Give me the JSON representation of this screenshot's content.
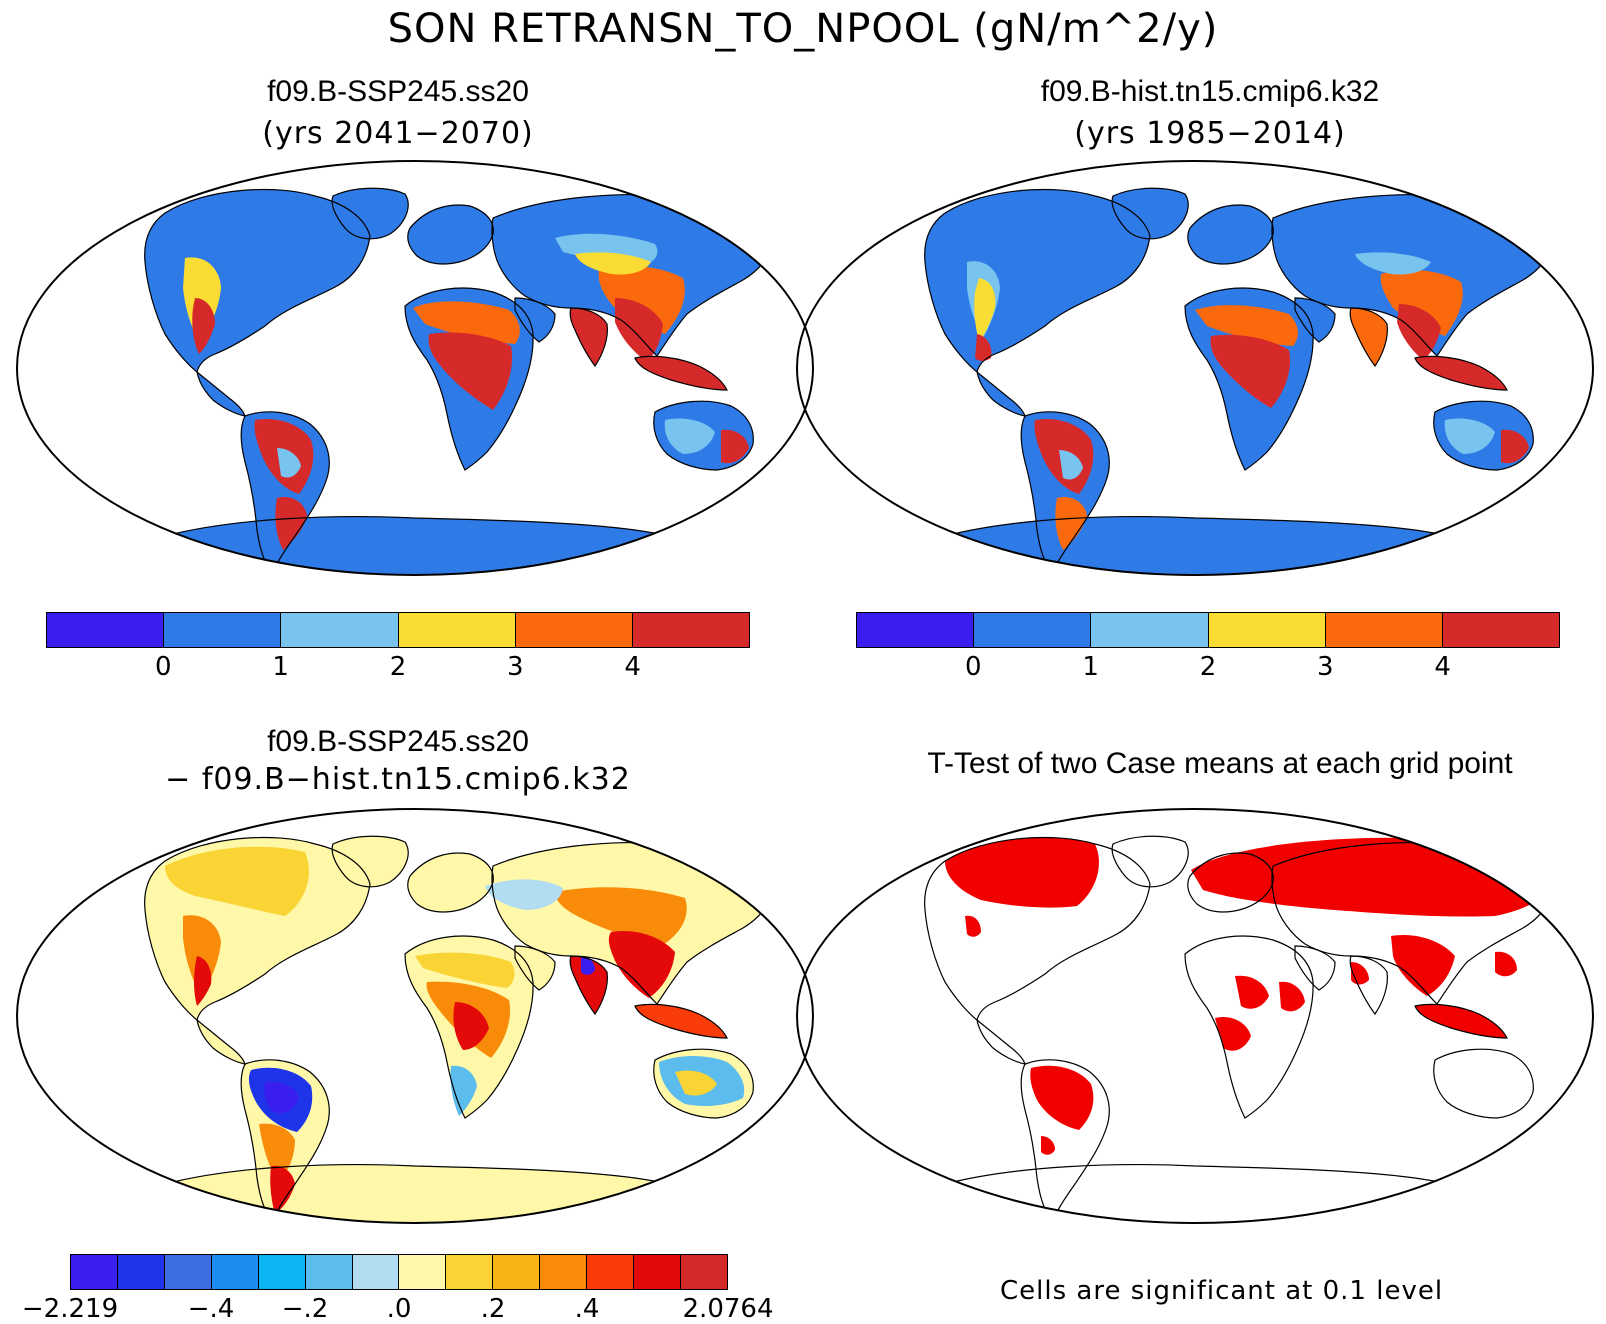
{
  "title": "SON RETRANSN_TO_NPOOL (gN/m^2/y)",
  "panels": {
    "top_left": {
      "title": "f09.B-SSP245.ss20",
      "subtitle": "(yrs 2041−2070)"
    },
    "top_right": {
      "title": "f09.B-hist.tn15.cmip6.k32",
      "subtitle": "(yrs 1985−2014)"
    },
    "bottom_left": {
      "title": "f09.B-SSP245.ss20",
      "subtitle": "− f09.B−hist.tn15.cmip6.k32"
    },
    "bottom_right": {
      "title": "T-Test of two Case means at each grid point",
      "note": "Cells are significant at 0.1 level"
    }
  },
  "colorbar_abs": {
    "colors": [
      "#3a1ef0",
      "#2e7be8",
      "#78c4ee",
      "#fadd34",
      "#fa6a0c",
      "#d62a2a"
    ],
    "labels": [
      "0",
      "1",
      "2",
      "3",
      "4"
    ]
  },
  "colorbar_diff": {
    "colors": [
      "#3a1ef0",
      "#1e34e8",
      "#3f6ee0",
      "#1e8cf0",
      "#0cb4f4",
      "#5cbcee",
      "#b2dcf2",
      "#fff8a8",
      "#fad434",
      "#f8b414",
      "#f88c0a",
      "#fa3c0a",
      "#e40a0a",
      "#d22a2a"
    ],
    "labels": [
      "−2.219",
      "−.4",
      "−.2",
      ".0",
      ".2",
      ".4",
      "2.0764"
    ]
  },
  "colors": {
    "land_low": "#2e7be8",
    "signif": "#f20000",
    "diff_bg": "#fff8a8"
  }
}
